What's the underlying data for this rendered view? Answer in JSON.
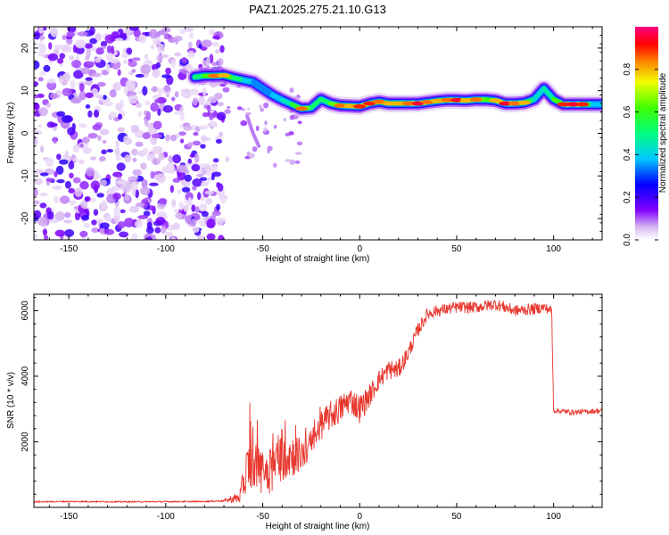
{
  "title": "PAZ1.2025.275.21.10.G13",
  "chart_data": [
    {
      "type": "heatmap",
      "name": "spectrogram",
      "xlabel": "Height of straight line (km)",
      "ylabel": "Frequency (Hz)",
      "xlim": [
        -168,
        125
      ],
      "ylim": [
        -25,
        25
      ],
      "x_ticks": [
        -150,
        -100,
        -50,
        0,
        50,
        100
      ],
      "x_tick_labels": [
        "-150",
        "-100",
        "-50",
        "0",
        "50",
        "100"
      ],
      "y_ticks": [
        -20,
        -10,
        0,
        10,
        20
      ],
      "y_tick_labels": [
        "-20",
        "-10",
        "0",
        "10",
        "20"
      ],
      "noise_region_x": [
        -168,
        -70
      ],
      "ridge": {
        "x": [
          -85,
          -80,
          -75,
          -70,
          -65,
          -60,
          -55,
          -50,
          -45,
          -40,
          -35,
          -30,
          -25,
          -20,
          -15,
          -10,
          -5,
          0,
          5,
          10,
          15,
          20,
          25,
          30,
          35,
          40,
          45,
          50,
          55,
          60,
          65,
          70,
          75,
          80,
          85,
          90,
          95,
          100,
          105,
          110,
          115,
          120,
          125
        ],
        "frequency": [
          13.2,
          13.5,
          13.5,
          13.6,
          13.0,
          12.5,
          12.0,
          10.5,
          9.0,
          7.8,
          6.8,
          5.8,
          6.0,
          8.0,
          7.0,
          6.5,
          6.4,
          6.3,
          7.0,
          7.4,
          7.0,
          7.0,
          7.0,
          7.0,
          7.3,
          7.6,
          7.8,
          7.8,
          7.7,
          7.9,
          7.9,
          7.7,
          7.0,
          7.0,
          7.2,
          8.0,
          10.5,
          8.0,
          6.8,
          6.8,
          6.8,
          6.8,
          6.8
        ],
        "amplitude": [
          0.6,
          0.7,
          0.85,
          0.8,
          0.75,
          0.55,
          0.45,
          0.4,
          0.45,
          0.5,
          0.6,
          0.85,
          0.75,
          0.55,
          0.75,
          0.85,
          0.8,
          0.9,
          0.9,
          0.85,
          0.8,
          0.8,
          0.85,
          0.95,
          0.85,
          0.8,
          0.85,
          0.95,
          0.8,
          0.85,
          0.75,
          0.8,
          0.95,
          0.85,
          0.8,
          0.55,
          0.5,
          0.65,
          0.9,
          0.95,
          0.9,
          0.5,
          0.45
        ]
      },
      "colorbar": {
        "label": "Normalized spectral amplitude",
        "range": [
          0,
          1
        ],
        "ticks": [
          0.0,
          0.2,
          0.4,
          0.6,
          0.8
        ],
        "tick_labels": [
          "0.0",
          "0.2",
          "0.4",
          "0.6",
          "0.8"
        ]
      }
    },
    {
      "type": "line",
      "name": "snr",
      "xlabel": "Height of straight line (km)",
      "ylabel": "SNR (10 * v/v)",
      "xlim": [
        -168,
        125
      ],
      "ylim": [
        0,
        6500
      ],
      "x_ticks": [
        -150,
        -100,
        -50,
        0,
        50,
        100
      ],
      "x_tick_labels": [
        "-150",
        "-100",
        "-50",
        "0",
        "50",
        "100"
      ],
      "y_ticks": [
        2000,
        4000,
        6000
      ],
      "y_tick_labels": [
        "2000",
        "4000",
        "6000"
      ],
      "color": "#e8382f",
      "x": [
        -168,
        -150,
        -120,
        -100,
        -80,
        -70,
        -62,
        -58,
        -55,
        -50,
        -45,
        -40,
        -35,
        -30,
        -25,
        -20,
        -15,
        -10,
        -5,
        0,
        5,
        10,
        15,
        20,
        25,
        30,
        35,
        40,
        50,
        60,
        70,
        80,
        90,
        95,
        99,
        100,
        101,
        110,
        125
      ],
      "y": [
        170,
        180,
        170,
        175,
        180,
        200,
        300,
        1200,
        1300,
        1100,
        1200,
        1700,
        1600,
        1600,
        1900,
        2500,
        2800,
        3000,
        3300,
        3000,
        3400,
        3900,
        4200,
        4200,
        4700,
        5400,
        5900,
        6000,
        6100,
        6100,
        6200,
        6000,
        6050,
        6100,
        6000,
        2950,
        2950,
        2900,
        2950
      ],
      "noise_amplitude": [
        20,
        20,
        20,
        20,
        20,
        30,
        200,
        700,
        700,
        700,
        800,
        900,
        700,
        500,
        450,
        450,
        450,
        450,
        400,
        450,
        350,
        300,
        300,
        300,
        250,
        220,
        200,
        180,
        180,
        180,
        180,
        180,
        180,
        150,
        150,
        80,
        80,
        80,
        80
      ]
    }
  ]
}
